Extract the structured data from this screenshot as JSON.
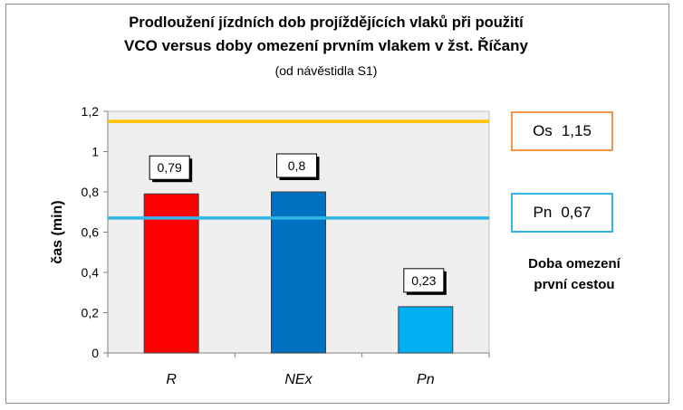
{
  "title": {
    "line1": "Prodloužení jízdních dob projíždějících vlaků při použití",
    "line2": "VCO versus doby omezení prvním vlakem v žst. Říčany",
    "line3": "(od návěstidla S1)"
  },
  "chart_data": {
    "type": "bar",
    "categories": [
      "R",
      "NEx",
      "Pn"
    ],
    "values": [
      0.79,
      0.8,
      0.23
    ],
    "data_labels": [
      "0,79",
      "0,8",
      "0,23"
    ],
    "bar_colors": [
      "#ff0000",
      "#0070c0",
      "#00b0f0"
    ],
    "ylabel": "čas (min)",
    "xlabel": "",
    "ylim": [
      0,
      1.2
    ],
    "yticks": [
      0,
      0.2,
      0.4,
      0.6,
      0.8,
      1,
      1.2
    ],
    "ytick_labels": [
      "0",
      "0,2",
      "0,4",
      "0,6",
      "0,8",
      "1",
      "1,2"
    ],
    "reference_lines": [
      {
        "name": "Os",
        "value": 1.15,
        "label": "1,15",
        "color": "#ffc000",
        "box_color": "#f79646"
      },
      {
        "name": "Pn",
        "value": 0.67,
        "label": "0,67",
        "color": "#31b6e7",
        "box_color": "#31b6e7"
      }
    ],
    "legend_title_line1": "Doba omezení",
    "legend_title_line2": "první cestou",
    "plot_area_color": "#efefef",
    "grid": false
  }
}
